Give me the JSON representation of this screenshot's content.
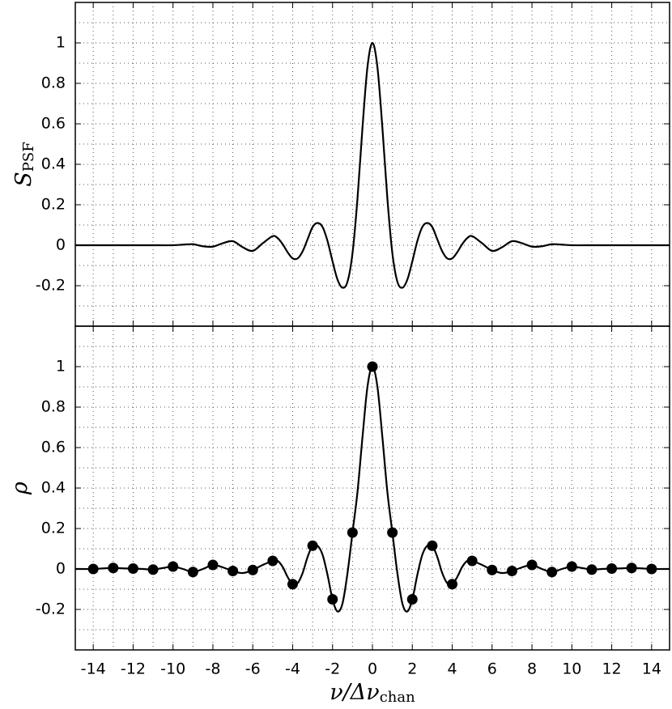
{
  "chart_data": [
    {
      "type": "line",
      "ylabel": "S",
      "ylabel_sub": "PSF",
      "xlim": [
        -14.9,
        14.9
      ],
      "ylim": [
        -0.4,
        1.2
      ],
      "xticks": [
        -14,
        -12,
        -10,
        -8,
        -6,
        -4,
        -2,
        0,
        2,
        4,
        6,
        8,
        10,
        12,
        14
      ],
      "xtick_labels": false,
      "xminor": [
        -13,
        -11,
        -9,
        -7,
        -5,
        -3,
        -1,
        1,
        3,
        5,
        7,
        9,
        11,
        13
      ],
      "yticks": [
        -0.2,
        0,
        0.2,
        0.4,
        0.6,
        0.8,
        1
      ],
      "yminor": [
        -0.3,
        -0.1,
        0.1,
        0.3,
        0.5,
        0.7,
        0.9,
        1.1
      ],
      "grid": true,
      "series": [
        {
          "color": "#000000",
          "style": "line",
          "x": [
            -14.9,
            -14,
            -13,
            -12,
            -11,
            -10,
            -9.5,
            -9,
            -8.5,
            -8,
            -7.5,
            -7,
            -6.5,
            -6,
            -5.5,
            -5,
            -4.75,
            -4.5,
            -4.25,
            -4,
            -3.75,
            -3.5,
            -3.25,
            -3,
            -2.75,
            -2.5,
            -2.25,
            -2,
            -1.75,
            -1.5,
            -1.25,
            -1,
            -0.75,
            -0.5,
            -0.25,
            0,
            0.25,
            0.5,
            0.75,
            1,
            1.25,
            1.5,
            1.75,
            2,
            2.25,
            2.5,
            2.75,
            3,
            3.25,
            3.5,
            3.75,
            4,
            4.25,
            4.5,
            4.75,
            5,
            5.5,
            6,
            6.5,
            7,
            7.5,
            8,
            8.5,
            9,
            9.5,
            10,
            11,
            12,
            13,
            14,
            14.9
          ],
          "values": [
            0,
            0,
            0,
            0,
            0,
            0,
            0.003,
            0.005,
            -0.005,
            -0.007,
            0.01,
            0.02,
            -0.01,
            -0.028,
            0.01,
            0.045,
            0.035,
            0.005,
            -0.035,
            -0.065,
            -0.065,
            -0.03,
            0.03,
            0.09,
            0.11,
            0.09,
            0.02,
            -0.08,
            -0.17,
            -0.21,
            -0.18,
            -0.04,
            0.23,
            0.58,
            0.88,
            1,
            0.88,
            0.58,
            0.23,
            -0.04,
            -0.18,
            -0.21,
            -0.17,
            -0.08,
            0.02,
            0.09,
            0.11,
            0.09,
            0.03,
            -0.03,
            -0.065,
            -0.065,
            -0.035,
            0.005,
            0.035,
            0.045,
            0.01,
            -0.028,
            -0.01,
            0.02,
            0.01,
            -0.007,
            -0.005,
            0.005,
            0.003,
            0,
            0,
            0,
            0,
            0,
            0
          ]
        }
      ]
    },
    {
      "type": "line",
      "ylabel": "ρ",
      "xlabel": "ν/Δν",
      "xlabel_sub": "chan",
      "xlim": [
        -14.9,
        14.9
      ],
      "ylim": [
        -0.4,
        1.2
      ],
      "xticks": [
        -14,
        -12,
        -10,
        -8,
        -6,
        -4,
        -2,
        0,
        2,
        4,
        6,
        8,
        10,
        12,
        14
      ],
      "xtick_labels": true,
      "xminor": [
        -13,
        -11,
        -9,
        -7,
        -5,
        -3,
        -1,
        1,
        3,
        5,
        7,
        9,
        11,
        13
      ],
      "yticks": [
        -0.2,
        0,
        0.2,
        0.4,
        0.6,
        0.8,
        1
      ],
      "yminor": [
        -0.3,
        -0.1,
        0.1,
        0.3,
        0.5,
        0.7,
        0.9,
        1.1
      ],
      "grid": true,
      "series": [
        {
          "color": "#000000",
          "style": "line",
          "x": [
            -14.9,
            -14,
            -13.5,
            -13,
            -12.5,
            -12,
            -11.5,
            -11,
            -10.5,
            -10,
            -9.5,
            -9,
            -8.5,
            -8,
            -7.5,
            -7,
            -6.5,
            -6,
            -5.5,
            -5,
            -4.75,
            -4.5,
            -4.25,
            -4,
            -3.75,
            -3.5,
            -3.25,
            -3,
            -2.75,
            -2.5,
            -2.25,
            -2,
            -1.75,
            -1.5,
            -1.25,
            -1,
            -0.75,
            -0.5,
            -0.25,
            0,
            0.25,
            0.5,
            0.75,
            1,
            1.25,
            1.5,
            1.75,
            2,
            2.25,
            2.5,
            2.75,
            3,
            3.25,
            3.5,
            3.75,
            4,
            4.25,
            4.5,
            4.75,
            5,
            5.5,
            6,
            6.5,
            7,
            7.5,
            8,
            8.5,
            9,
            9.5,
            10,
            10.5,
            11,
            11.5,
            12,
            12.5,
            13,
            13.5,
            14,
            14.9
          ],
          "values": [
            0,
            0,
            0.003,
            0.005,
            0.003,
            0.002,
            0,
            -0.003,
            0.005,
            0.012,
            0,
            -0.015,
            0,
            0.02,
            0.008,
            -0.01,
            -0.02,
            -0.005,
            0.02,
            0.04,
            0.04,
            0.01,
            -0.04,
            -0.075,
            -0.07,
            -0.02,
            0.06,
            0.115,
            0.115,
            0.07,
            -0.03,
            -0.15,
            -0.21,
            -0.17,
            -0.02,
            0.18,
            0.38,
            0.65,
            0.9,
            1,
            0.9,
            0.65,
            0.38,
            0.18,
            -0.02,
            -0.17,
            -0.21,
            -0.15,
            -0.03,
            0.07,
            0.115,
            0.115,
            0.06,
            -0.02,
            -0.07,
            -0.075,
            -0.04,
            0.01,
            0.04,
            0.04,
            0.02,
            -0.005,
            -0.02,
            -0.01,
            0.008,
            0.02,
            0,
            -0.015,
            0,
            0.012,
            0.005,
            -0.003,
            0,
            0.002,
            0.003,
            0.005,
            0.003,
            0,
            0
          ]
        },
        {
          "color": "#000000",
          "style": "markers",
          "x": [
            -14,
            -13,
            -12,
            -11,
            -10,
            -9,
            -8,
            -7,
            -6,
            -5,
            -4,
            -3,
            -2,
            -1,
            0,
            1,
            2,
            3,
            4,
            5,
            6,
            7,
            8,
            9,
            10,
            11,
            12,
            13,
            14
          ],
          "values": [
            0,
            0.005,
            0.002,
            -0.003,
            0.012,
            -0.015,
            0.02,
            -0.01,
            -0.005,
            0.04,
            -0.075,
            0.115,
            -0.15,
            0.18,
            1,
            0.18,
            -0.15,
            0.115,
            -0.075,
            0.04,
            -0.005,
            -0.01,
            0.02,
            -0.015,
            0.012,
            -0.003,
            0.002,
            0.005,
            0
          ]
        }
      ]
    }
  ]
}
